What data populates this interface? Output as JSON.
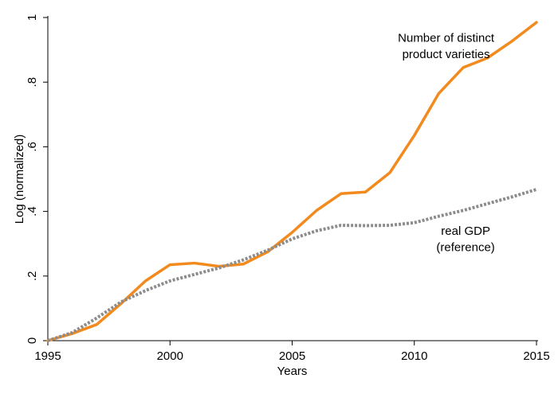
{
  "chart_data": {
    "type": "line",
    "xlabel": "Years",
    "ylabel": "Log (normalized)",
    "xlim": [
      1995,
      2015
    ],
    "ylim": [
      0,
      1
    ],
    "xticks": [
      1995,
      2000,
      2005,
      2010,
      2015
    ],
    "yticks": [
      {
        "value": 0,
        "label": "0"
      },
      {
        "value": 0.2,
        "label": ".2"
      },
      {
        "value": 0.4,
        "label": ".4"
      },
      {
        "value": 0.6,
        "label": ".6"
      },
      {
        "value": 0.8,
        "label": ".8"
      },
      {
        "value": 1,
        "label": "1"
      }
    ],
    "grid": false,
    "x": [
      1995,
      1996,
      1997,
      1998,
      1999,
      2000,
      2001,
      2002,
      2003,
      2004,
      2005,
      2006,
      2007,
      2008,
      2009,
      2010,
      2011,
      2012,
      2013,
      2014,
      2015
    ],
    "series": [
      {
        "color": "#f28a1e",
        "style": "solid",
        "values": [
          0.0,
          0.022,
          0.05,
          0.115,
          0.185,
          0.235,
          0.24,
          0.23,
          0.237,
          0.275,
          0.335,
          0.403,
          0.455,
          0.46,
          0.52,
          0.635,
          0.765,
          0.845,
          0.875,
          0.927,
          0.985
        ],
        "annotation": {
          "lines": [
            "Number of distinct",
            "product varieties"
          ],
          "x": 2011.3,
          "y": [
            0.937,
            0.887
          ]
        }
      },
      {
        "color": "#8c8c8c",
        "style": "dotted",
        "values": [
          0.0,
          0.025,
          0.07,
          0.12,
          0.155,
          0.185,
          0.205,
          0.225,
          0.25,
          0.28,
          0.315,
          0.34,
          0.357,
          0.356,
          0.357,
          0.365,
          0.385,
          0.403,
          0.424,
          0.445,
          0.468
        ],
        "annotation": {
          "lines": [
            "real GDP",
            "(reference)"
          ],
          "x": 2012.1,
          "y": [
            0.34,
            0.29
          ]
        }
      }
    ]
  }
}
